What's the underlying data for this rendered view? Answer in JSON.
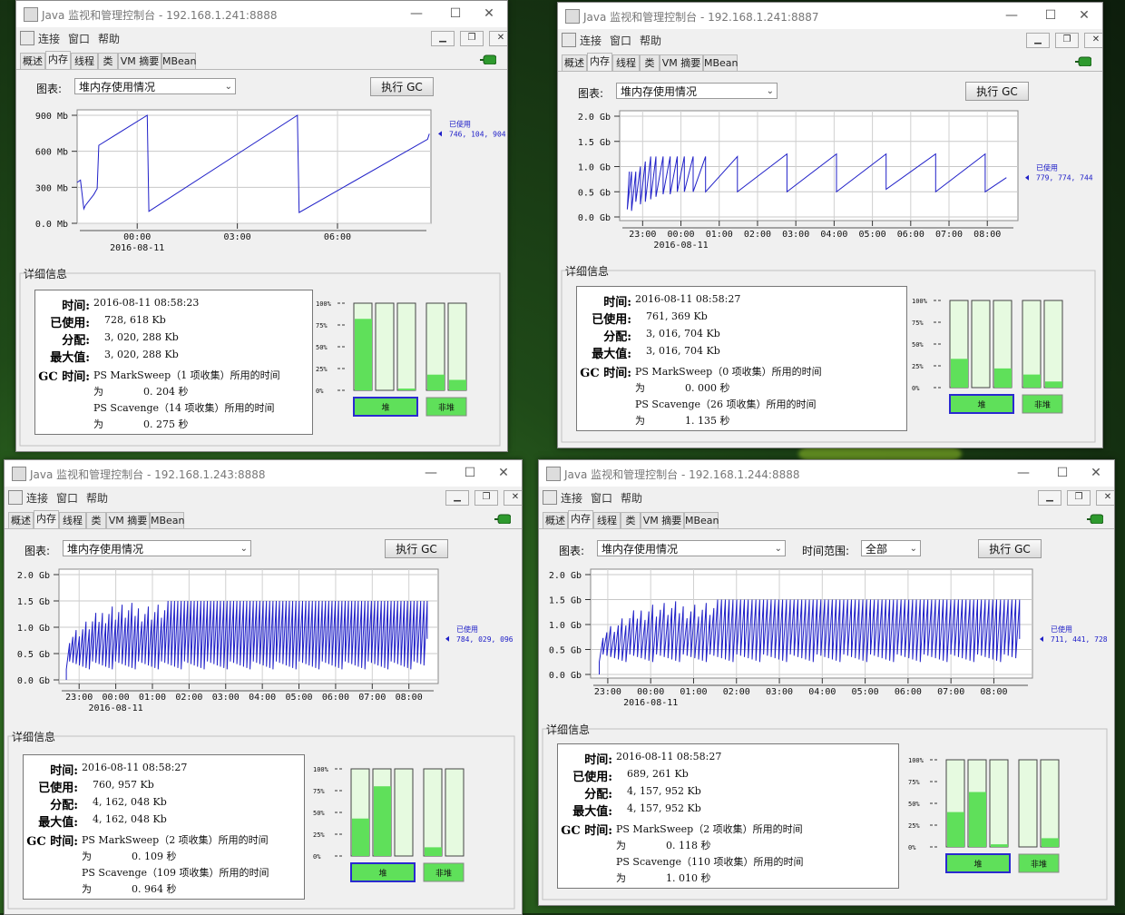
{
  "windows": [
    {
      "title": "Java 监视和管理控制台 - 192.168.1.241:8888",
      "menu": [
        "连接",
        "窗口",
        "帮助"
      ],
      "tabs": [
        "概述",
        "内存",
        "线程",
        "类",
        "VM 摘要",
        "MBean"
      ],
      "active_tab": "内存",
      "chart_label": "图表:",
      "chart_select": "堆内存使用情况",
      "gc_button": "执行 GC",
      "details_title": "详细信息",
      "details": {
        "time_label": "时间:",
        "time": "2016-08-11 08:58:23",
        "used_label": "已使用:",
        "used": "728, 618 Kb",
        "committed_label": "分配:",
        "committed": "3, 020, 288 Kb",
        "max_label": "最大值:",
        "max": "3, 020, 288 Kb",
        "gc_label": "GC 时间:",
        "gc1": "PS MarkSweep（1 项收集）所用的时间",
        "gc1_val": "为　　　　0. 204 秒",
        "gc2": "PS Scavenge（14 项收集）所用的时间",
        "gc2_val": "为　　　　0. 275 秒"
      },
      "pool_labels": [
        "堆",
        "非堆"
      ],
      "pool_fills": [
        0.82,
        0.0,
        0.02,
        0.18,
        0.12
      ],
      "pct_ticks": [
        "100%",
        "75%",
        "50%",
        "25%",
        "0%"
      ]
    },
    {
      "title": "Java 监视和管理控制台 - 192.168.1.241:8887",
      "menu": [
        "连接",
        "窗口",
        "帮助"
      ],
      "tabs": [
        "概述",
        "内存",
        "线程",
        "类",
        "VM 摘要",
        "MBean"
      ],
      "active_tab": "内存",
      "chart_label": "图表:",
      "chart_select": "堆内存使用情况",
      "gc_button": "执行 GC",
      "details_title": "详细信息",
      "details": {
        "time_label": "时间:",
        "time": "2016-08-11 08:58:27",
        "used_label": "已使用:",
        "used": "761, 369 Kb",
        "committed_label": "分配:",
        "committed": "3, 016, 704 Kb",
        "max_label": "最大值:",
        "max": "3, 016, 704 Kb",
        "gc_label": "GC 时间:",
        "gc1": "PS MarkSweep（0 项收集）所用的时间",
        "gc1_val": "为　　　　0. 000 秒",
        "gc2": "PS Scavenge（26 项收集）所用的时间",
        "gc2_val": "为　　　　1. 135 秒"
      },
      "pool_labels": [
        "堆",
        "非堆"
      ],
      "pool_fills": [
        0.33,
        0.0,
        0.22,
        0.15,
        0.07
      ],
      "pct_ticks": [
        "100%",
        "75%",
        "50%",
        "25%",
        "0%"
      ]
    },
    {
      "title": "Java 监视和管理控制台 - 192.168.1.243:8888",
      "menu": [
        "连接",
        "窗口",
        "帮助"
      ],
      "tabs": [
        "概述",
        "内存",
        "线程",
        "类",
        "VM 摘要",
        "MBean"
      ],
      "active_tab": "内存",
      "chart_label": "图表:",
      "chart_select": "堆内存使用情况",
      "gc_button": "执行 GC",
      "details_title": "详细信息",
      "details": {
        "time_label": "时间:",
        "time": "2016-08-11 08:58:27",
        "used_label": "已使用:",
        "used": "760, 957 Kb",
        "committed_label": "分配:",
        "committed": "4, 162, 048 Kb",
        "max_label": "最大值:",
        "max": "4, 162, 048 Kb",
        "gc_label": "GC 时间:",
        "gc1": "PS MarkSweep（2 项收集）所用的时间",
        "gc1_val": "为　　　　0. 109 秒",
        "gc2": "PS Scavenge（109 项收集）所用的时间",
        "gc2_val": "为　　　　0. 964 秒"
      },
      "pool_labels": [
        "堆",
        "非堆"
      ],
      "pool_fills": [
        0.43,
        0.8,
        0.0,
        0.1,
        0.0
      ],
      "pct_ticks": [
        "100%",
        "75%",
        "50%",
        "25%",
        "0%"
      ]
    },
    {
      "title": "Java 监视和管理控制台 - 192.168.1.244:8888",
      "menu": [
        "连接",
        "窗口",
        "帮助"
      ],
      "tabs": [
        "概述",
        "内存",
        "线程",
        "类",
        "VM 摘要",
        "MBean"
      ],
      "active_tab": "内存",
      "chart_label": "图表:",
      "chart_select": "堆内存使用情况",
      "range_label": "时间范围:",
      "range_select": "全部",
      "gc_button": "执行 GC",
      "details_title": "详细信息",
      "details": {
        "time_label": "时间:",
        "time": "2016-08-11 08:58:27",
        "used_label": "已使用:",
        "used": "689, 261 Kb",
        "committed_label": "分配:",
        "committed": "4, 157, 952 Kb",
        "max_label": "最大值:",
        "max": "4, 157, 952 Kb",
        "gc_label": "GC 时间:",
        "gc1": "PS MarkSweep（2 项收集）所用的时间",
        "gc1_val": "为　　　　0. 118 秒",
        "gc2": "PS Scavenge（110 项收集）所用的时间",
        "gc2_val": "为　　　　1. 010 秒"
      },
      "pool_labels": [
        "堆",
        "非堆"
      ],
      "pool_fills": [
        0.4,
        0.63,
        0.03,
        0.0,
        0.1
      ],
      "pct_ticks": [
        "100%",
        "75%",
        "50%",
        "25%",
        "0%"
      ]
    }
  ],
  "chart_data": [
    {
      "type": "line",
      "series": [
        {
          "name": "已使用",
          "value_label": "746, 104, 904"
        }
      ],
      "y_ticks": [
        "900 Mb",
        "600 Mb",
        "300 Mb",
        "0.0 Mb"
      ],
      "ylim": [
        0,
        900
      ],
      "x_ticks": [
        "00:00",
        "03:00",
        "06:00"
      ],
      "x_sublabel": "2016-08-11",
      "x_hours": [
        -1.8,
        -1.7,
        -1.6,
        -1.55,
        -1.3,
        -1.2,
        -1.15,
        0.3,
        0.35,
        4.8,
        4.85,
        8.7,
        8.75
      ],
      "y_values": [
        340,
        360,
        120,
        150,
        240,
        290,
        650,
        900,
        100,
        900,
        90,
        700,
        746
      ],
      "x_range": [
        -1.8,
        8.8
      ]
    },
    {
      "type": "line",
      "series": [
        {
          "name": "已使用",
          "value_label": "779, 774, 744"
        }
      ],
      "y_ticks": [
        "2.0 Gb",
        "1.5 Gb",
        "1.0 Gb",
        "0.5 Gb",
        "0.0 Gb"
      ],
      "ylim": [
        0,
        2.0
      ],
      "x_ticks": [
        "23:00",
        "00:00",
        "01:00",
        "02:00",
        "03:00",
        "04:00",
        "05:00",
        "06:00",
        "07:00",
        "08:00"
      ],
      "x_sublabel": "2016-08-11",
      "sawtooth": {
        "start": -1.4,
        "end": 8.5,
        "segments": [
          [
            0.15,
            0.9,
            0.12
          ],
          [
            0.12,
            0.9,
            0.12
          ],
          [
            0.3,
            1.0,
            0.13
          ],
          [
            0.25,
            1.1,
            0.14
          ],
          [
            0.3,
            1.2,
            0.15
          ],
          [
            0.35,
            1.2,
            0.15
          ],
          [
            0.4,
            1.2,
            0.2
          ],
          [
            0.45,
            1.2,
            0.2
          ],
          [
            0.45,
            1.2,
            0.2
          ],
          [
            0.5,
            1.2,
            0.2
          ],
          [
            0.5,
            1.2,
            0.25
          ],
          [
            0.5,
            1.2,
            0.35
          ],
          [
            0.5,
            1.2,
            0.9
          ],
          [
            0.5,
            1.25,
            1.4
          ],
          [
            0.5,
            1.25,
            1.4
          ],
          [
            0.5,
            1.25,
            1.4
          ],
          [
            0.55,
            1.25,
            1.4
          ],
          [
            0.5,
            1.25,
            1.4
          ],
          [
            0.5,
            0.78,
            0.6
          ]
        ]
      }
    },
    {
      "type": "line",
      "series": [
        {
          "name": "已使用",
          "value_label": "784, 029, 096"
        }
      ],
      "y_ticks": [
        "2.0 Gb",
        "1.5 Gb",
        "1.0 Gb",
        "0.5 Gb",
        "0.0 Gb"
      ],
      "ylim": [
        0,
        2.0
      ],
      "x_ticks": [
        "23:00",
        "00:00",
        "01:00",
        "02:00",
        "03:00",
        "04:00",
        "05:00",
        "06:00",
        "07:00",
        "08:00"
      ],
      "x_sublabel": "2016-08-11",
      "dense": {
        "start": -1.35,
        "end": 8.5,
        "low": 0.2,
        "high": 1.5,
        "cycles": 110,
        "last": 0.78
      }
    },
    {
      "type": "line",
      "series": [
        {
          "name": "已使用",
          "value_label": "711, 441, 728"
        }
      ],
      "y_ticks": [
        "2.0 Gb",
        "1.5 Gb",
        "1.0 Gb",
        "0.5 Gb",
        "0.0 Gb"
      ],
      "ylim": [
        0,
        2.0
      ],
      "x_ticks": [
        "23:00",
        "00:00",
        "01:00",
        "02:00",
        "03:00",
        "04:00",
        "05:00",
        "06:00",
        "07:00",
        "08:00"
      ],
      "x_sublabel": "2016-08-11",
      "dense": {
        "start": -1.2,
        "end": 8.6,
        "low": 0.25,
        "high": 1.5,
        "cycles": 110,
        "last": 0.71
      }
    }
  ]
}
